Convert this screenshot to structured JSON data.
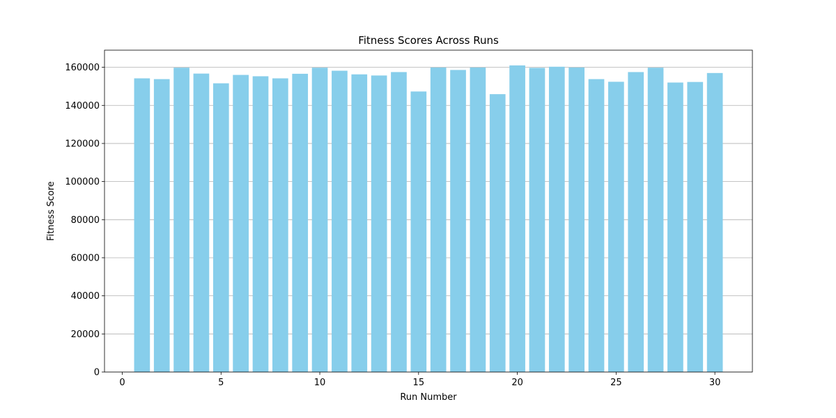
{
  "chart_data": {
    "type": "bar",
    "title": "Fitness Scores Across Runs",
    "xlabel": "Run Number",
    "ylabel": "Fitness Score",
    "x": [
      1,
      2,
      3,
      4,
      5,
      6,
      7,
      8,
      9,
      10,
      11,
      12,
      13,
      14,
      15,
      16,
      17,
      18,
      19,
      20,
      21,
      22,
      23,
      24,
      25,
      26,
      27,
      28,
      29,
      30
    ],
    "values": [
      154200,
      153800,
      159800,
      156700,
      151600,
      156000,
      155300,
      154200,
      156600,
      159800,
      158200,
      156300,
      155700,
      157500,
      147300,
      159900,
      158600,
      159900,
      145900,
      161000,
      159700,
      160300,
      159900,
      153800,
      152400,
      157500,
      159800,
      152000,
      152300,
      157000
    ],
    "xlim": [
      -0.9,
      31.9
    ],
    "ylim": [
      0,
      169000
    ],
    "xticks": [
      0,
      5,
      10,
      15,
      20,
      25,
      30
    ],
    "yticks": [
      0,
      20000,
      40000,
      60000,
      80000,
      100000,
      120000,
      140000,
      160000
    ],
    "bar_width": 0.8,
    "grid": "y",
    "bar_color": "#87ceeb"
  }
}
